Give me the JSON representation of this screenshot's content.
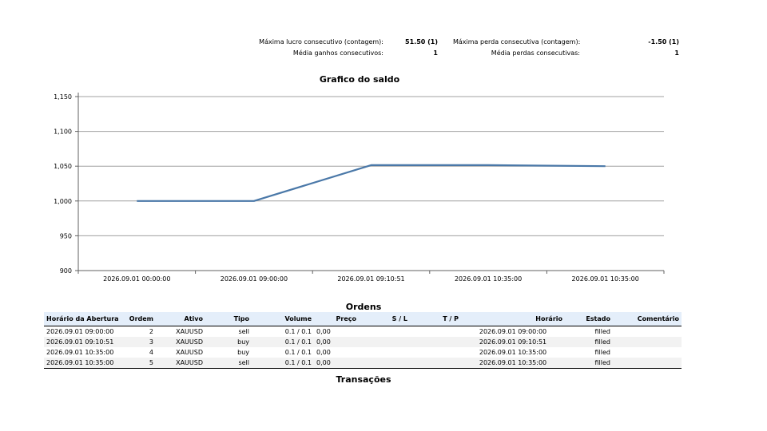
{
  "stats": {
    "max_consec_profit_label": "Máxima lucro consecutivo (contagem):",
    "max_consec_profit_value": "51.50 (1)",
    "max_consec_loss_label": "Máxima perda consecutiva (contagem):",
    "max_consec_loss_value": "-1.50 (1)",
    "avg_consec_wins_label": "Média ganhos consecutivos:",
    "avg_consec_wins_value": "1",
    "avg_consec_losses_label": "Média perdas consecutivas:",
    "avg_consec_losses_value": "1"
  },
  "chart_data": {
    "type": "line",
    "title": "Grafico do saldo",
    "categories": [
      "2026.09.01 00:00:00",
      "2026.09.01 09:00:00",
      "2026.09.01 09:10:51",
      "2026.09.01 10:35:00",
      "2026.09.01 10:35:00"
    ],
    "series": [
      {
        "values": [
          1000,
          1000,
          1051.5,
          1051.5,
          1050
        ],
        "color": "#4a78a8"
      }
    ],
    "yticks": [
      "900",
      "950",
      "1,000",
      "1,050",
      "1,100",
      "1,150"
    ],
    "ylim": [
      900,
      1150
    ],
    "grid": true,
    "xlabel": "",
    "ylabel": ""
  },
  "orders": {
    "title": "Ordens",
    "columns": [
      "Horário da Abertura",
      "Ordem",
      "Ativo",
      "Tipo",
      "Volume",
      "Preço",
      "S / L",
      "T / P",
      "Horário",
      "Estado",
      "Comentário"
    ],
    "rows": [
      [
        "2026.09.01 09:00:00",
        "2",
        "XAUUSD",
        "sell",
        "0.1 / 0.1",
        "0,00",
        "",
        "",
        "2026.09.01 09:00:00",
        "filled",
        ""
      ],
      [
        "2026.09.01 09:10:51",
        "3",
        "XAUUSD",
        "buy",
        "0.1 / 0.1",
        "0,00",
        "",
        "",
        "2026.09.01 09:10:51",
        "filled",
        ""
      ],
      [
        "2026.09.01 10:35:00",
        "4",
        "XAUUSD",
        "buy",
        "0.1 / 0.1",
        "0,00",
        "",
        "",
        "2026.09.01 10:35:00",
        "filled",
        ""
      ],
      [
        "2026.09.01 10:35:00",
        "5",
        "XAUUSD",
        "sell",
        "0.1 / 0.1",
        "0,00",
        "",
        "",
        "2026.09.01 10:35:00",
        "filled",
        ""
      ]
    ]
  },
  "transactions": {
    "title": "Transações"
  }
}
